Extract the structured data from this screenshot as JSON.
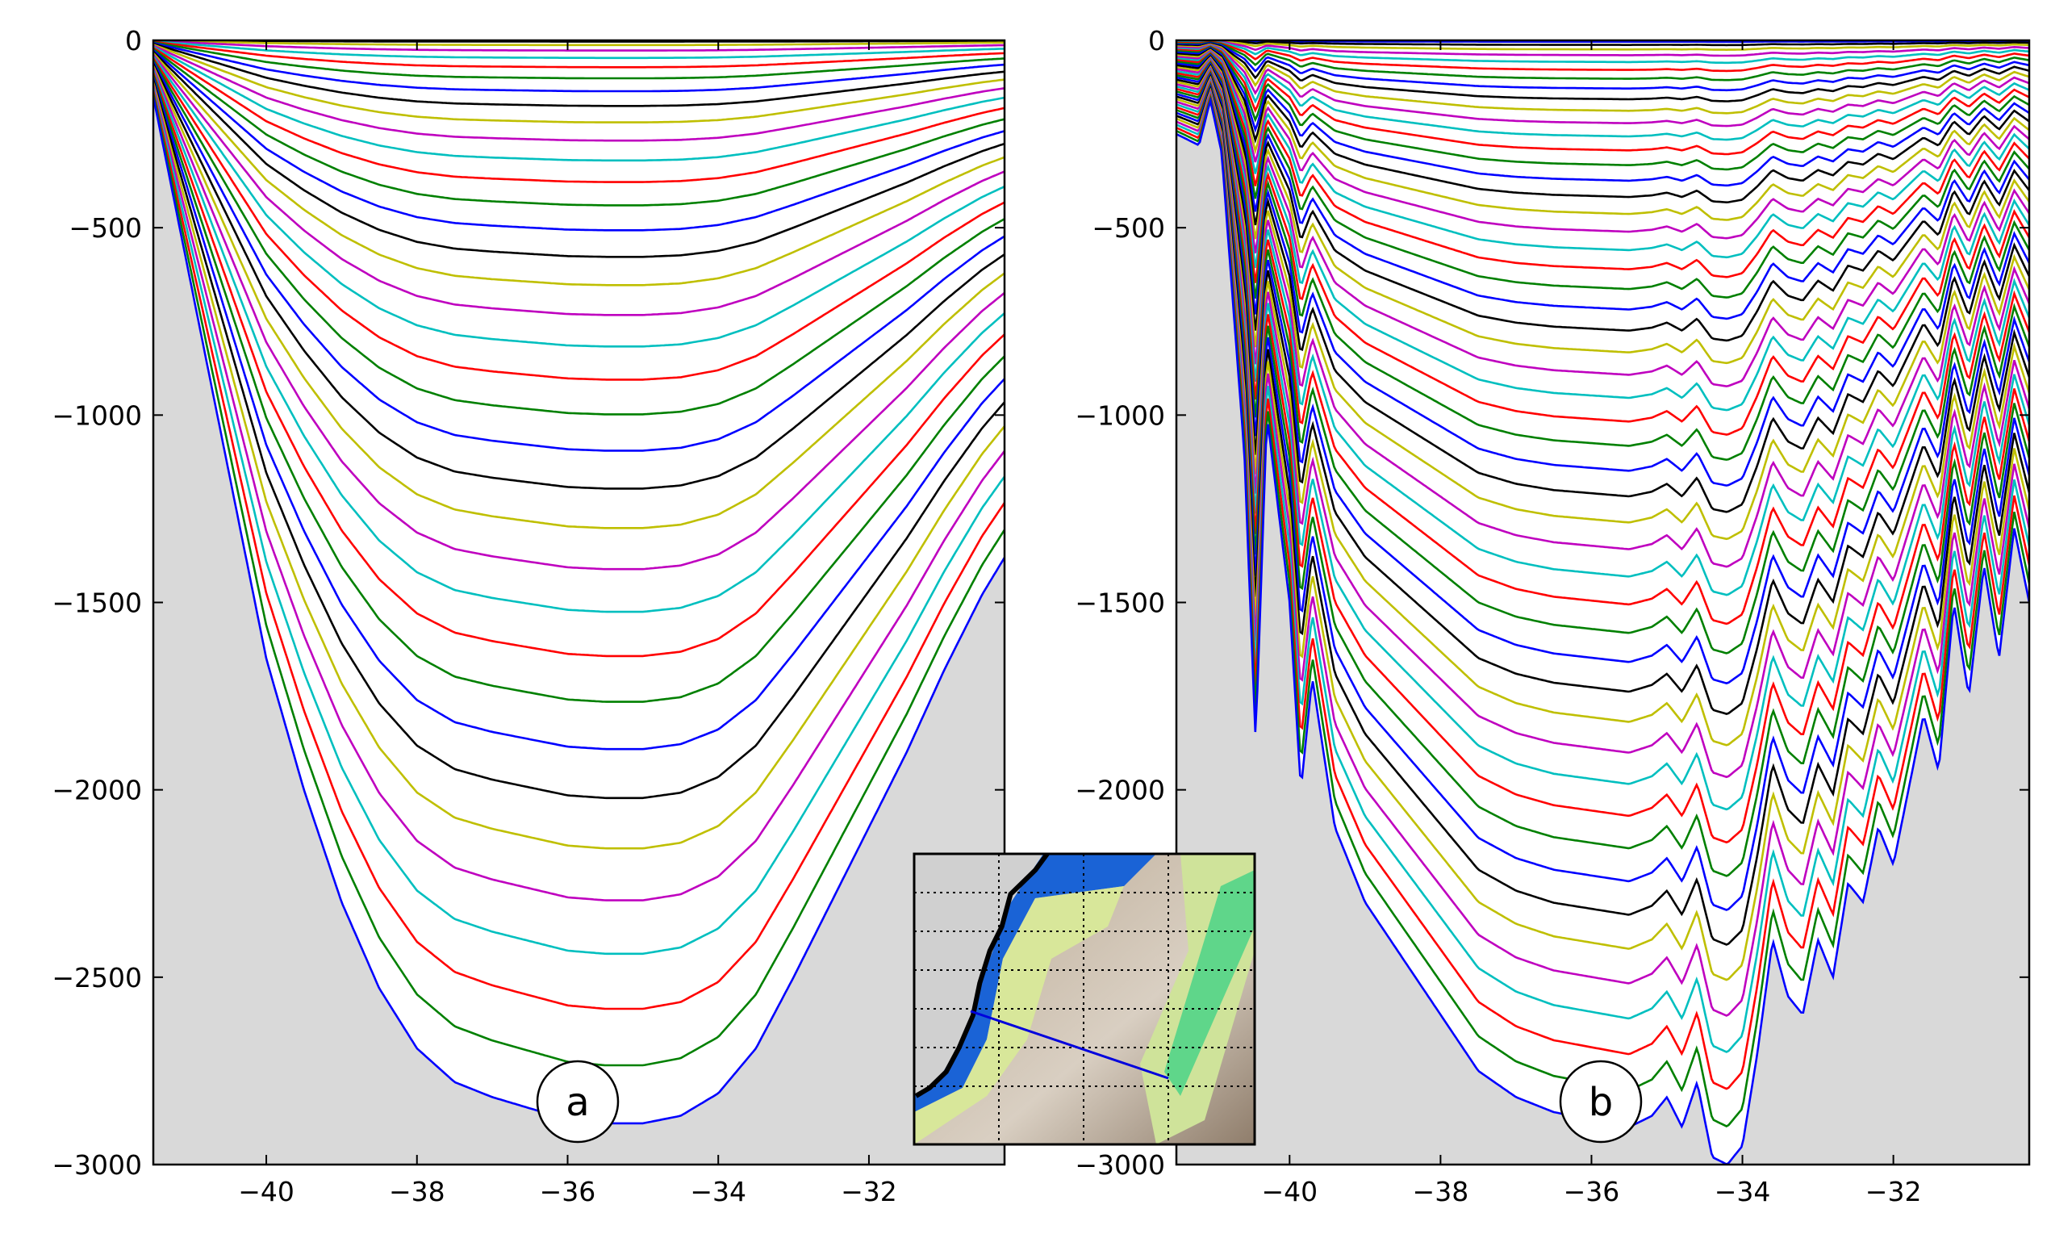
{
  "figure": {
    "background": "#ffffff",
    "land_color": "#d9d9d9",
    "cycle_colors": [
      "#0000ff",
      "#008000",
      "#ff0000",
      "#00bfbf",
      "#bf00bf",
      "#bfbf00",
      "#000000"
    ]
  },
  "chart_data": [
    {
      "type": "line",
      "panel_label": "a",
      "title": "",
      "xlabel": "",
      "ylabel": "",
      "xlim": [
        -41.5,
        -30.2
      ],
      "ylim": [
        -3000,
        0
      ],
      "xticks": [
        -40,
        -38,
        -36,
        -34,
        -32
      ],
      "xtick_labels": [
        "−40",
        "−38",
        "−36",
        "−34",
        "−32"
      ],
      "yticks": [
        0,
        -500,
        -1000,
        -1500,
        -2000,
        -2500,
        -3000
      ],
      "ytick_labels": [
        "0",
        "−500",
        "−1000",
        "−1500",
        "−2000",
        "−2500",
        "−3000"
      ],
      "grid": false,
      "legend": "none",
      "levels": 35,
      "series_note": "",
      "x": [
        -41.5,
        -41.0,
        -40.5,
        -40.0,
        -39.5,
        -39.0,
        -38.5,
        -38.0,
        -37.5,
        -37.0,
        -36.5,
        -36.0,
        -35.5,
        -35.0,
        -34.5,
        -34.0,
        -33.5,
        -33.0,
        -32.5,
        -32.0,
        -31.5,
        -31.0,
        -30.5,
        -30.2
      ],
      "bottom_depth": [
        -150,
        -650,
        -1150,
        -1650,
        -2000,
        -2300,
        -2530,
        -2690,
        -2780,
        -2820,
        -2850,
        -2880,
        -2890,
        -2890,
        -2870,
        -2810,
        -2690,
        -2500,
        -2300,
        -2100,
        -1900,
        -1680,
        -1480,
        -1380
      ],
      "series": []
    },
    {
      "type": "line",
      "panel_label": "b",
      "title": "",
      "xlabel": "",
      "ylabel": "",
      "xlim": [
        -41.5,
        -30.2
      ],
      "ylim": [
        -3000,
        0
      ],
      "xticks": [
        -40,
        -38,
        -36,
        -34,
        -32
      ],
      "xtick_labels": [
        "−40",
        "−38",
        "−36",
        "−34",
        "−32"
      ],
      "yticks": [
        0,
        -500,
        -1000,
        -1500,
        -2000,
        -2500,
        -3000
      ],
      "ytick_labels": [
        "0",
        "−500",
        "−1000",
        "−1500",
        "−2000",
        "−2500",
        "−3000"
      ],
      "grid": false,
      "legend": "none",
      "levels": 50,
      "x": [
        -41.5,
        -41.2,
        -41.05,
        -40.9,
        -40.6,
        -40.45,
        -40.3,
        -40.0,
        -39.85,
        -39.7,
        -39.4,
        -39.0,
        -38.5,
        -38.0,
        -37.5,
        -37.0,
        -36.5,
        -36.0,
        -35.5,
        -35.2,
        -35.0,
        -34.8,
        -34.6,
        -34.4,
        -34.2,
        -34.0,
        -33.8,
        -33.6,
        -33.4,
        -33.2,
        -33.0,
        -32.8,
        -32.6,
        -32.4,
        -32.2,
        -32.0,
        -31.8,
        -31.6,
        -31.4,
        -31.2,
        -31.0,
        -30.8,
        -30.6,
        -30.4,
        -30.2
      ],
      "bottom_depth": [
        -250,
        -280,
        -160,
        -300,
        -1100,
        -1870,
        -1000,
        -1500,
        -2000,
        -1700,
        -2100,
        -2300,
        -2450,
        -2600,
        -2750,
        -2820,
        -2860,
        -2880,
        -2900,
        -2870,
        -2820,
        -2900,
        -2780,
        -2980,
        -3000,
        -2950,
        -2700,
        -2400,
        -2550,
        -2600,
        -2400,
        -2500,
        -2250,
        -2300,
        -2100,
        -2200,
        -2000,
        -1800,
        -1950,
        -1500,
        -1750,
        -1400,
        -1650,
        -1300,
        -1500
      ],
      "series": []
    }
  ],
  "inset_map": {
    "ocean_color": "#1a63d6",
    "shelf_color": "#d8e79a",
    "deep_color": "#c6b8a4",
    "land_color": "#d0d0d0",
    "section_line_color": "#0000dd",
    "grid_style": "dotted",
    "section": {
      "from": "west coast",
      "to": "east-southeast"
    }
  },
  "labels": {
    "a": "a",
    "b": "b"
  }
}
